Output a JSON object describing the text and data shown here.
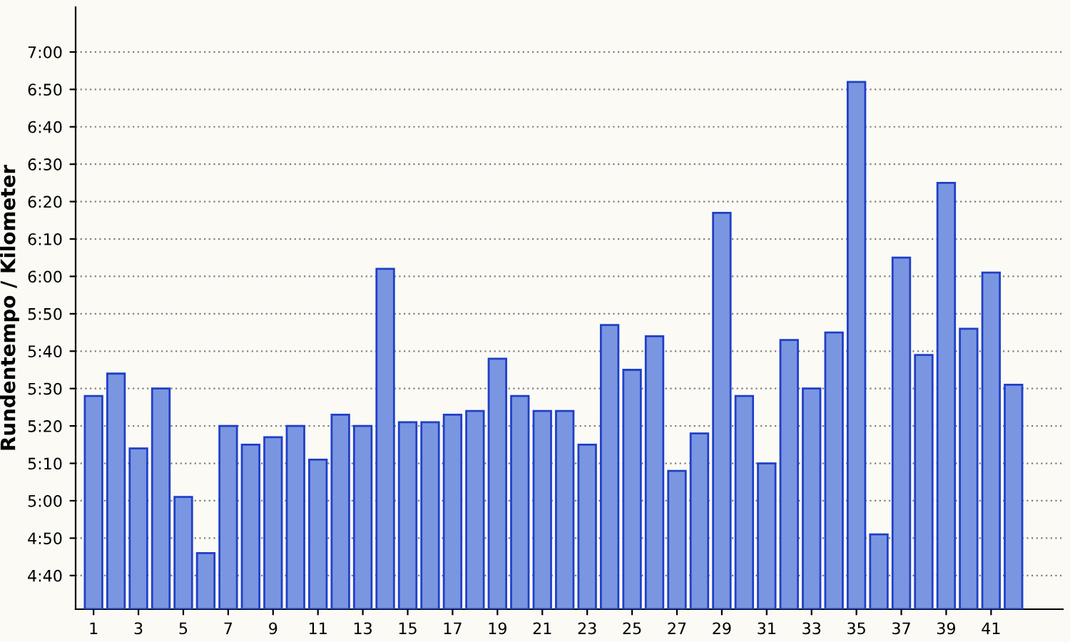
{
  "chart_data": {
    "type": "bar",
    "ylabel": "Rundentempo / Kilometer",
    "categories": [
      "1",
      null,
      "3",
      null,
      "5",
      null,
      "7",
      null,
      "9",
      null,
      "11",
      null,
      "13",
      null,
      "15",
      null,
      "17",
      null,
      "19",
      null,
      "21",
      null,
      "23",
      null,
      "25",
      null,
      "27",
      null,
      "29",
      null,
      "31",
      null,
      "33",
      null,
      "35",
      null,
      "37",
      null,
      "39",
      null,
      "41",
      null
    ],
    "values": [
      328,
      334,
      314,
      330,
      301,
      286,
      320,
      315,
      317,
      320,
      311,
      323,
      320,
      362,
      321,
      321,
      323,
      324,
      338,
      328,
      324,
      324,
      315,
      347,
      335,
      344,
      308,
      318,
      377,
      328,
      310,
      343,
      330,
      345,
      412,
      291,
      365,
      339,
      385,
      346,
      361,
      331
    ],
    "color": "#7b96e0",
    "ylim": [
      271,
      432
    ],
    "yticks": [
      {
        "value": 280,
        "label": "4:40"
      },
      {
        "value": 290,
        "label": "4:50"
      },
      {
        "value": 300,
        "label": "5:00"
      },
      {
        "value": 310,
        "label": "5:10"
      },
      {
        "value": 320,
        "label": "5:20"
      },
      {
        "value": 330,
        "label": "5:30"
      },
      {
        "value": 340,
        "label": "5:40"
      },
      {
        "value": 350,
        "label": "5:50"
      },
      {
        "value": 360,
        "label": "6:00"
      },
      {
        "value": 370,
        "label": "6:10"
      },
      {
        "value": 380,
        "label": "6:20"
      },
      {
        "value": 390,
        "label": "6:30"
      },
      {
        "value": 400,
        "label": "6:40"
      },
      {
        "value": 410,
        "label": "6:50"
      },
      {
        "value": 420,
        "label": "7:00"
      }
    ],
    "grid": "y"
  }
}
